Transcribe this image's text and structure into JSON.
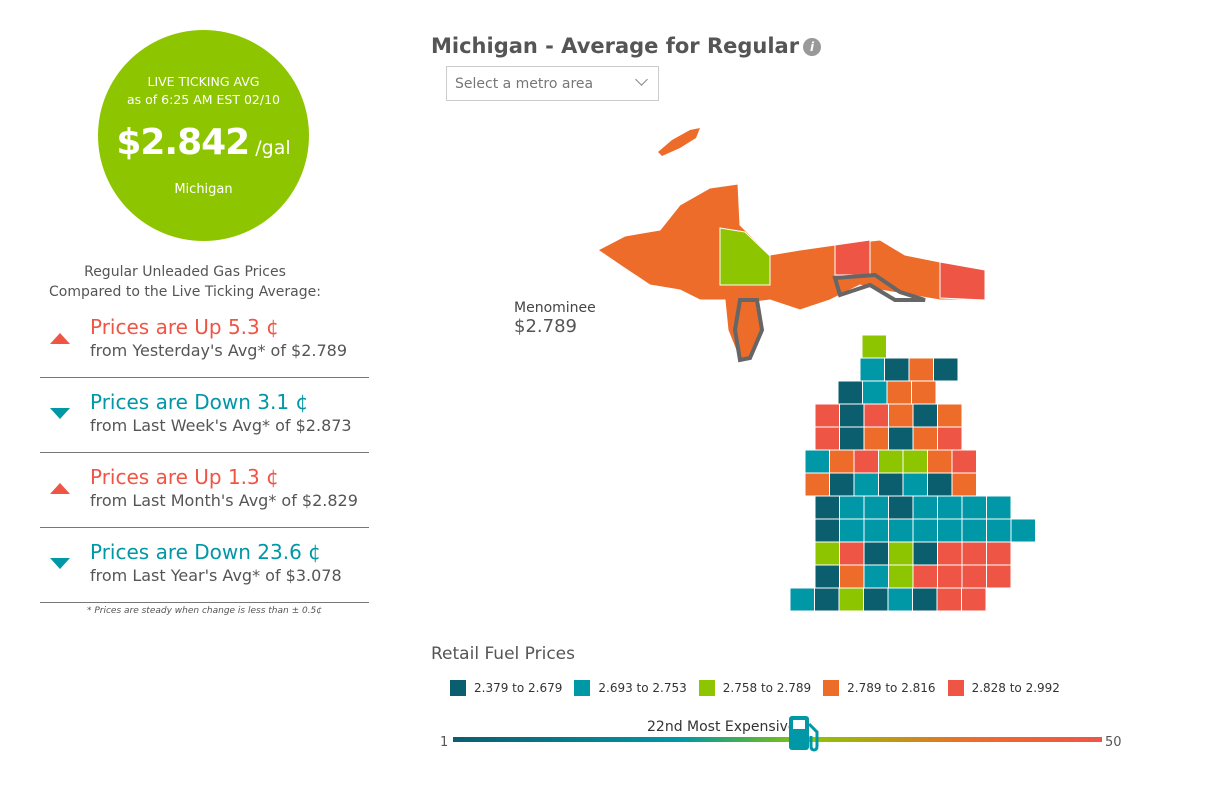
{
  "live": {
    "label": "LIVE TICKING AVG",
    "as_of": "as of   6:25 AM EST 02/10",
    "price": "$2.842",
    "unit": " /gal",
    "state": "Michigan"
  },
  "compare": {
    "heading_1": "Regular Unleaded Gas Prices",
    "heading_2": "Compared to the Live Ticking Average:",
    "rows": [
      {
        "direction": "up",
        "change": "Prices are Up 5.3 ¢",
        "from": "from Yesterday's Avg* of $2.789"
      },
      {
        "direction": "down",
        "change": "Prices are Down 3.1 ¢",
        "from": "from Last Week's Avg* of $2.873"
      },
      {
        "direction": "up",
        "change": "Prices are Up 1.3 ¢",
        "from": "from Last Month's Avg* of $2.829"
      },
      {
        "direction": "down",
        "change": "Prices are Down 23.6 ¢",
        "from": "from Last Year's Avg* of $3.078"
      }
    ],
    "note": "* Prices are steady when change is less than ± 0.5¢"
  },
  "map": {
    "title": "Michigan - Average for Regular",
    "info_icon": "info-icon",
    "metro_placeholder": "Select a metro area",
    "hover_county": "Menominee",
    "hover_price": "$2.789"
  },
  "legend": {
    "title": "Retail Fuel Prices",
    "bins": [
      {
        "label": "2.379 to 2.679",
        "color": "#0b5e6e"
      },
      {
        "label": "2.693 to 2.753",
        "color": "#0097a7"
      },
      {
        "label": "2.758 to 2.789",
        "color": "#8dc600"
      },
      {
        "label": "2.789 to 2.816",
        "color": "#ee6c2a"
      },
      {
        "label": "2.828 to 2.992",
        "color": "#ef5545"
      }
    ]
  },
  "rank": {
    "label": "22nd Most Expensive",
    "rank": 22,
    "min": "1",
    "max": "50"
  }
}
